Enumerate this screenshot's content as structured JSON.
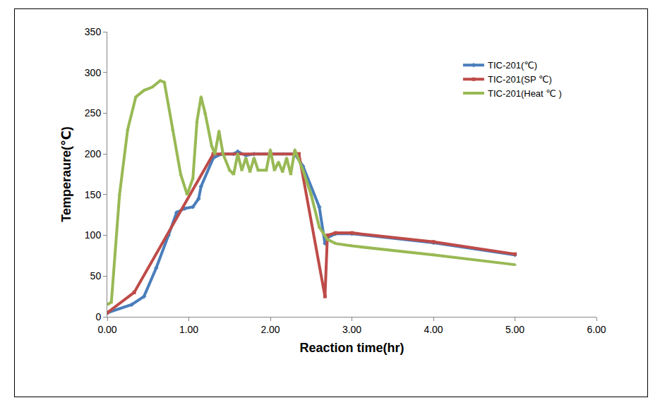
{
  "chart_data": {
    "type": "line",
    "x_label": "Reaction time(hr)",
    "y_label": "Temperaure(℃)",
    "xlim": [
      0,
      6
    ],
    "xticks": [
      {
        "value": 0,
        "label": "0.00"
      },
      {
        "value": 1,
        "label": "1.00"
      },
      {
        "value": 2,
        "label": "2.00"
      },
      {
        "value": 3,
        "label": "3.00"
      },
      {
        "value": 4,
        "label": "4.00"
      },
      {
        "value": 5,
        "label": "5.00"
      },
      {
        "value": 6,
        "label": "6.00"
      }
    ],
    "ylim": [
      0,
      350
    ],
    "yticks": [
      0,
      50,
      100,
      150,
      200,
      250,
      300,
      350
    ],
    "grid": false,
    "legend": "top right",
    "series": [
      {
        "name": "TIC-201(℃)",
        "color": "#4a7ebb",
        "marker": "diamond",
        "x": [
          0,
          0.3,
          0.45,
          0.6,
          0.75,
          0.85,
          0.95,
          1.05,
          1.12,
          1.15,
          1.3,
          1.4,
          1.55,
          1.6,
          1.7,
          1.8,
          2.0,
          2.3,
          2.4,
          2.6,
          2.67,
          2.7,
          2.8,
          3.0,
          4.0,
          5.0
        ],
        "values": [
          5,
          15,
          25,
          60,
          100,
          128,
          133,
          135,
          145,
          160,
          195,
          200,
          200,
          203,
          198,
          200,
          200,
          200,
          185,
          135,
          90,
          97,
          102,
          102,
          91,
          76
        ]
      },
      {
        "name": "TIC-201(SP ℃)",
        "color": "#be4b48",
        "marker": "square",
        "x": [
          0,
          0.33,
          1.3,
          2.35,
          2.67,
          2.7,
          2.8,
          3.0,
          4.0,
          5.0
        ],
        "values": [
          5,
          30,
          200,
          200,
          25,
          100,
          103,
          103,
          92,
          77
        ]
      },
      {
        "name": "TIC-201(Heat ℃ )",
        "color": "#98b954",
        "marker": "triangle",
        "x": [
          0,
          0.05,
          0.15,
          0.25,
          0.35,
          0.45,
          0.55,
          0.65,
          0.7,
          0.8,
          0.9,
          0.98,
          1.05,
          1.1,
          1.15,
          1.2,
          1.28,
          1.32,
          1.37,
          1.42,
          1.5,
          1.55,
          1.6,
          1.65,
          1.7,
          1.75,
          1.8,
          1.85,
          1.95,
          2.0,
          2.05,
          2.1,
          2.15,
          2.2,
          2.25,
          2.3,
          2.4,
          2.5,
          2.6,
          2.7,
          2.8,
          3.0,
          4.0,
          5.0
        ],
        "values": [
          15,
          18,
          150,
          230,
          270,
          278,
          282,
          290,
          288,
          230,
          175,
          150,
          170,
          240,
          270,
          250,
          210,
          200,
          228,
          200,
          180,
          175,
          200,
          180,
          195,
          178,
          195,
          180,
          180,
          205,
          180,
          190,
          178,
          195,
          175,
          205,
          180,
          150,
          110,
          95,
          90,
          87,
          76,
          64
        ]
      }
    ]
  }
}
